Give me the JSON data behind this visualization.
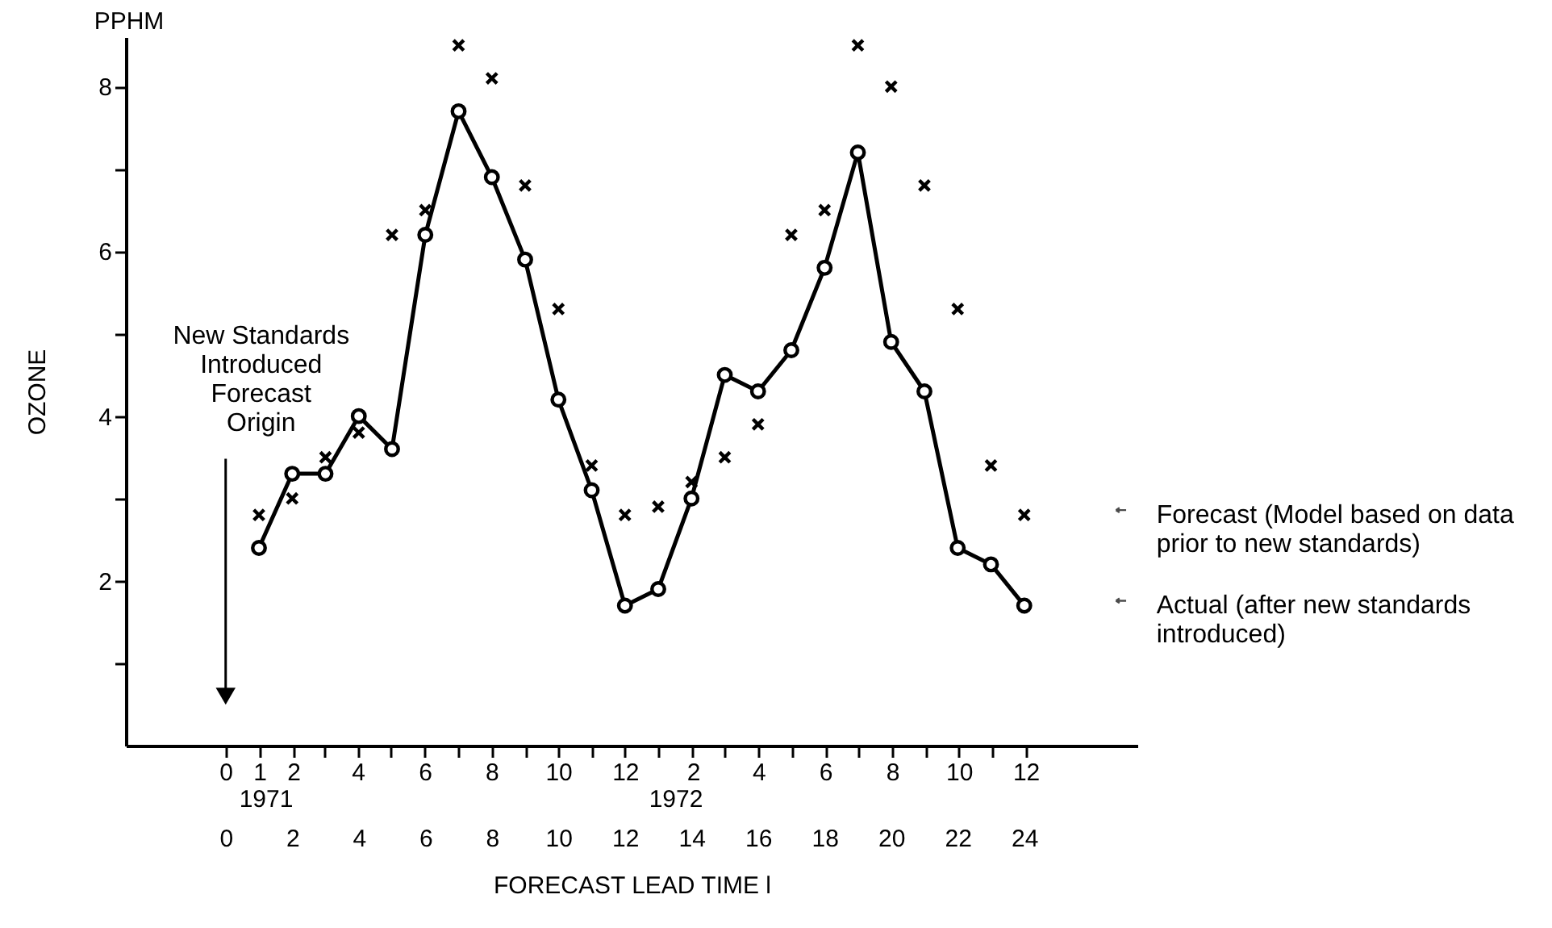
{
  "chart_data": {
    "type": "line",
    "xlabel": "FORECAST LEAD TIME l",
    "ylabel": "OZONE",
    "annotations": [
      {
        "text": "New Standards\nIntroduced\nForecast\nOrigin",
        "x": 0,
        "y": 0.6
      },
      "PPHM",
      "1971",
      "1972"
    ],
    "x": [
      1,
      2,
      3,
      4,
      5,
      6,
      7,
      8,
      9,
      10,
      11,
      12,
      13,
      14,
      15,
      16,
      17,
      18,
      19,
      20,
      21,
      22,
      23,
      24
    ],
    "series": [
      {
        "name": "Actual (after new standards introduced)",
        "marker": "circle",
        "color": "#000000",
        "values": [
          2.4,
          3.3,
          3.3,
          4.0,
          3.6,
          6.2,
          7.7,
          6.9,
          5.9,
          4.2,
          3.1,
          1.7,
          1.9,
          3.0,
          4.5,
          4.3,
          4.8,
          5.8,
          7.2,
          4.9,
          4.3,
          2.4,
          2.2,
          1.7
        ]
      },
      {
        "name": "Forecast (Model based on data prior to new standards)",
        "type": "scatter",
        "marker": "cross",
        "color": "#000000",
        "values": [
          2.8,
          3.0,
          3.5,
          3.8,
          6.2,
          6.5,
          8.5,
          8.1,
          6.8,
          5.3,
          3.4,
          2.8,
          2.9,
          3.2,
          3.5,
          3.9,
          6.2,
          6.5,
          8.5,
          8.0,
          6.8,
          5.3,
          3.4,
          2.8
        ]
      }
    ],
    "xlim": [
      -3,
      27.4
    ],
    "ylim": [
      0,
      8.6
    ],
    "xticks": [
      0,
      2,
      4,
      6,
      8,
      10,
      12,
      14,
      16,
      18,
      20,
      22,
      24
    ],
    "x2lim": [
      "1970-09-01",
      "1973-03-13"
    ],
    "x2ticks": [
      {
        "value": "1970-12",
        "label": "0"
      },
      {
        "value": "1971-01",
        "label": "1"
      },
      {
        "value": "1971-02",
        "label": "2"
      },
      {
        "value": "1971-03",
        "label": null
      },
      {
        "value": "1971-04",
        "label": "4"
      },
      {
        "value": "1971-05",
        "label": null
      },
      {
        "value": "1971-06",
        "label": "6"
      },
      {
        "value": "1971-07",
        "label": null
      },
      {
        "value": "1971-08",
        "label": "8"
      },
      {
        "value": "1971-09",
        "label": null
      },
      {
        "value": "1971-10",
        "label": "10"
      },
      {
        "value": "1971-11",
        "label": null
      },
      {
        "value": "1971-12",
        "label": "12"
      },
      {
        "value": "1972-01",
        "label": null
      },
      {
        "value": "1972-02",
        "label": "2"
      },
      {
        "value": "1972-03",
        "label": null
      },
      {
        "value": "1972-04",
        "label": "4"
      },
      {
        "value": "1972-05",
        "label": null
      },
      {
        "value": "1972-06",
        "label": "6"
      },
      {
        "value": "1972-07",
        "label": null
      },
      {
        "value": "1972-08",
        "label": "8"
      },
      {
        "value": "1972-09",
        "label": null
      },
      {
        "value": "1972-10",
        "label": "10"
      },
      {
        "value": "1972-11",
        "label": null
      },
      {
        "value": "1972-12",
        "label": "12"
      }
    ],
    "yticks": [
      {
        "value": 1,
        "label": null
      },
      2,
      {
        "value": 3,
        "label": null
      },
      4,
      {
        "value": 5,
        "label": null
      },
      6,
      {
        "value": 7,
        "label": null
      },
      8
    ],
    "grid": false,
    "legend": "right"
  }
}
